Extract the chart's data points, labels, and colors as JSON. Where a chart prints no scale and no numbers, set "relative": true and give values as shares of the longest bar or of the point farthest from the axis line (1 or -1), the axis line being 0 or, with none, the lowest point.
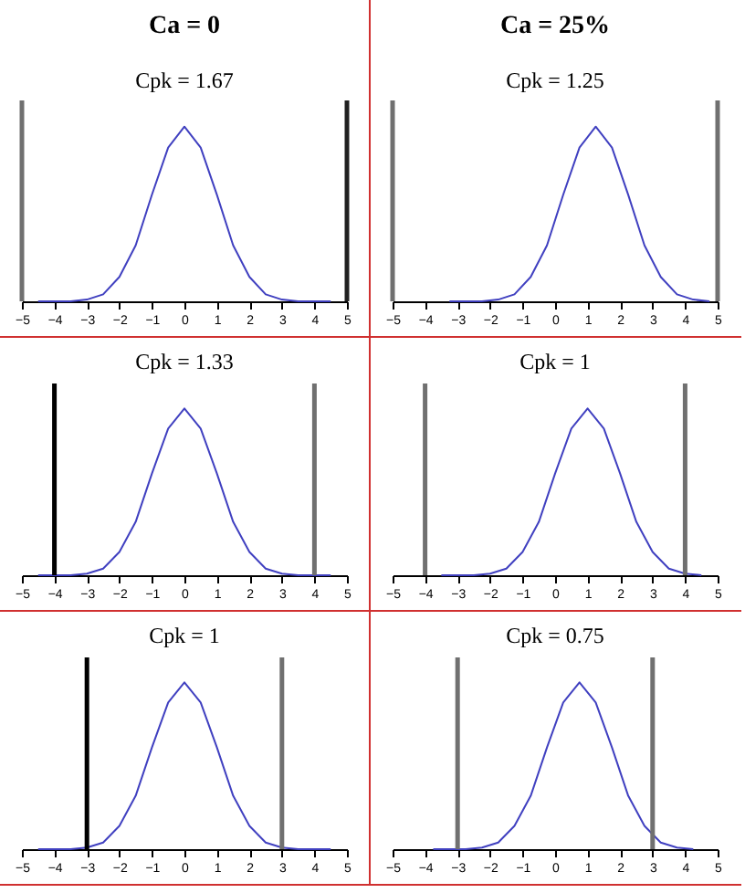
{
  "chart_data": [
    {
      "type": "line",
      "title": "Ca = 0",
      "subtitle": "Cpk = 1.67",
      "relative": true,
      "xlim": [
        -5,
        5
      ],
      "xticks": [
        -5,
        -4,
        -3,
        -2,
        -1,
        0,
        1,
        2,
        3,
        4,
        5
      ],
      "grid": false,
      "series": [
        {
          "color": "#4040c0",
          "x": [
            -4.5,
            -4,
            -3.5,
            -3,
            -2.5,
            -2,
            -1.5,
            -1,
            -0.5,
            0,
            0.5,
            1,
            1.5,
            2,
            2.5,
            3,
            3.5,
            4,
            4.5
          ],
          "values": [
            0,
            0,
            0,
            0.01,
            0.04,
            0.14,
            0.32,
            0.61,
            0.88,
            1,
            0.88,
            0.61,
            0.32,
            0.14,
            0.04,
            0.01,
            0,
            0,
            0
          ]
        }
      ],
      "ref_lines": [
        {
          "axis": "x",
          "value": -5,
          "color": "#707070"
        },
        {
          "axis": "x",
          "value": 5,
          "color": "#202020"
        }
      ]
    },
    {
      "type": "line",
      "title": "Ca = 25%",
      "subtitle": "Cpk = 1.25",
      "relative": true,
      "xlim": [
        -5,
        5
      ],
      "xticks": [
        -5,
        -4,
        -3,
        -2,
        -1,
        0,
        1,
        2,
        3,
        4,
        5
      ],
      "grid": false,
      "series": [
        {
          "color": "#4040c0",
          "x": [
            -3.25,
            -2.75,
            -2.25,
            -1.75,
            -1.25,
            -0.75,
            -0.25,
            0.25,
            0.75,
            1.25,
            1.75,
            2.25,
            2.75,
            3.25,
            3.75,
            4.25,
            4.75
          ],
          "values": [
            0,
            0,
            0,
            0.01,
            0.04,
            0.14,
            0.32,
            0.61,
            0.88,
            1,
            0.88,
            0.61,
            0.32,
            0.14,
            0.04,
            0.01,
            0
          ]
        }
      ],
      "ref_lines": [
        {
          "axis": "x",
          "value": -5,
          "color": "#707070"
        },
        {
          "axis": "x",
          "value": 5,
          "color": "#707070"
        }
      ]
    },
    {
      "type": "line",
      "title": "Cpk = 1.33",
      "relative": true,
      "xlim": [
        -5,
        5
      ],
      "xticks": [
        -5,
        -4,
        -3,
        -2,
        -1,
        0,
        1,
        2,
        3,
        4,
        5
      ],
      "grid": false,
      "series": [
        {
          "color": "#4040c0",
          "x": [
            -4.5,
            -4,
            -3.5,
            -3,
            -2.5,
            -2,
            -1.5,
            -1,
            -0.5,
            0,
            0.5,
            1,
            1.5,
            2,
            2.5,
            3,
            3.5,
            4,
            4.5
          ],
          "values": [
            0,
            0,
            0,
            0.01,
            0.04,
            0.14,
            0.32,
            0.61,
            0.88,
            1,
            0.88,
            0.61,
            0.32,
            0.14,
            0.04,
            0.01,
            0,
            0,
            0
          ]
        }
      ],
      "ref_lines": [
        {
          "axis": "x",
          "value": -4,
          "color": "#000000"
        },
        {
          "axis": "x",
          "value": 4,
          "color": "#707070"
        }
      ]
    },
    {
      "type": "line",
      "title": "Cpk = 1",
      "relative": true,
      "xlim": [
        -5,
        5
      ],
      "xticks": [
        -5,
        -4,
        -3,
        -2,
        -1,
        0,
        1,
        2,
        3,
        4,
        5
      ],
      "grid": false,
      "series": [
        {
          "color": "#4040c0",
          "x": [
            -3.5,
            -3,
            -2.5,
            -2,
            -1.5,
            -1,
            -0.5,
            0,
            0.5,
            1,
            1.5,
            2,
            2.5,
            3,
            3.5,
            4,
            4.5
          ],
          "values": [
            0,
            0,
            0,
            0.01,
            0.04,
            0.14,
            0.32,
            0.61,
            0.88,
            1,
            0.88,
            0.61,
            0.32,
            0.14,
            0.04,
            0.01,
            0
          ]
        }
      ],
      "ref_lines": [
        {
          "axis": "x",
          "value": -4,
          "color": "#707070"
        },
        {
          "axis": "x",
          "value": 4,
          "color": "#707070"
        }
      ]
    },
    {
      "type": "line",
      "title": "Cpk = 1",
      "relative": true,
      "xlim": [
        -5,
        5
      ],
      "xticks": [
        -5,
        -4,
        -3,
        -2,
        -1,
        0,
        1,
        2,
        3,
        4,
        5
      ],
      "grid": false,
      "series": [
        {
          "color": "#4040c0",
          "x": [
            -4.5,
            -4,
            -3.5,
            -3,
            -2.5,
            -2,
            -1.5,
            -1,
            -0.5,
            0,
            0.5,
            1,
            1.5,
            2,
            2.5,
            3,
            3.5,
            4,
            4.5
          ],
          "values": [
            0,
            0,
            0,
            0.01,
            0.04,
            0.14,
            0.32,
            0.61,
            0.88,
            1,
            0.88,
            0.61,
            0.32,
            0.14,
            0.04,
            0.01,
            0,
            0,
            0
          ]
        }
      ],
      "ref_lines": [
        {
          "axis": "x",
          "value": -3,
          "color": "#000000"
        },
        {
          "axis": "x",
          "value": 3,
          "color": "#707070"
        }
      ]
    },
    {
      "type": "line",
      "title": "Cpk = 0.75",
      "relative": true,
      "xlim": [
        -5,
        5
      ],
      "xticks": [
        -5,
        -4,
        -3,
        -2,
        -1,
        0,
        1,
        2,
        3,
        4,
        5
      ],
      "grid": false,
      "series": [
        {
          "color": "#4040c0",
          "x": [
            -3.75,
            -3.25,
            -2.75,
            -2.25,
            -1.75,
            -1.25,
            -0.75,
            -0.25,
            0.25,
            0.75,
            1.25,
            1.75,
            2.25,
            2.75,
            3.25,
            3.75,
            4.25
          ],
          "values": [
            0,
            0,
            0,
            0.01,
            0.04,
            0.14,
            0.32,
            0.61,
            0.88,
            1,
            0.88,
            0.61,
            0.32,
            0.14,
            0.04,
            0.01,
            0
          ]
        }
      ],
      "ref_lines": [
        {
          "axis": "x",
          "value": -3,
          "color": "#707070"
        },
        {
          "axis": "x",
          "value": 3,
          "color": "#707070"
        }
      ]
    }
  ]
}
